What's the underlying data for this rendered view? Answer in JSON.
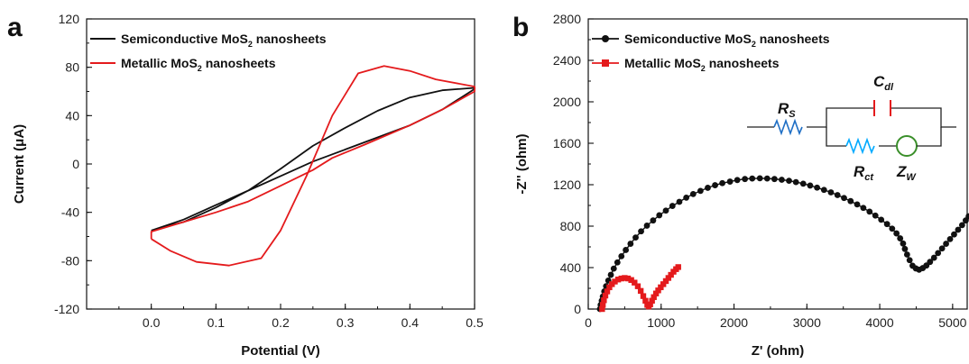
{
  "panels": [
    {
      "label": "a"
    },
    {
      "label": "b"
    }
  ],
  "chart_data": [
    {
      "type": "line",
      "xlabel": "Potential (V)",
      "ylabel": "Current (μA)",
      "xlim": [
        -0.1,
        0.5
      ],
      "ylim": [
        -120,
        120
      ],
      "xticks": [
        "0.0",
        "0.1",
        "0.2",
        "0.3",
        "0.4",
        "0.5"
      ],
      "yticks": [
        "-120",
        "-80",
        "-40",
        "0",
        "40",
        "80",
        "120"
      ],
      "grid": false,
      "legend_position": "top-left",
      "series": [
        {
          "name": "Semiconductive MoS2 nanosheets",
          "legend_main": "Semiconductive MoS",
          "legend_sub": "2",
          "legend_rest": " nanosheets",
          "color": "#111111",
          "x": [
            0.0,
            0.05,
            0.1,
            0.15,
            0.2,
            0.25,
            0.3,
            0.35,
            0.4,
            0.45,
            0.5,
            0.5,
            0.45,
            0.4,
            0.35,
            0.3,
            0.25,
            0.2,
            0.15,
            0.1,
            0.05,
            0.0,
            0.0
          ],
          "y": [
            -55,
            -48,
            -36,
            -22,
            -4,
            15,
            30,
            44,
            55,
            61,
            63,
            62,
            45,
            32,
            22,
            12,
            2,
            -10,
            -22,
            -34,
            -46,
            -55,
            -55
          ]
        },
        {
          "name": "Metallic MoS2 nanosheets",
          "legend_main": "Metallic MoS",
          "legend_sub": "2",
          "legend_rest": " nanosheets",
          "color": "#e41a1c",
          "x": [
            0.0,
            0.03,
            0.07,
            0.12,
            0.17,
            0.2,
            0.24,
            0.28,
            0.32,
            0.36,
            0.4,
            0.44,
            0.5,
            0.5,
            0.45,
            0.4,
            0.33,
            0.28,
            0.25,
            0.2,
            0.15,
            0.1,
            0.05,
            0.0,
            0.0
          ],
          "y": [
            -62,
            -72,
            -81,
            -84,
            -78,
            -55,
            -10,
            40,
            75,
            81,
            77,
            70,
            64,
            60,
            45,
            32,
            16,
            5,
            -5,
            -18,
            -31,
            -40,
            -48,
            -56,
            -62
          ]
        }
      ]
    },
    {
      "type": "scatter",
      "xlabel": "Z' (ohm)",
      "ylabel": "-Z'' (ohm)",
      "xlim": [
        0,
        5200
      ],
      "ylim": [
        0,
        2800
      ],
      "xticks": [
        "0",
        "1000",
        "2000",
        "3000",
        "4000",
        "5000"
      ],
      "yticks": [
        "0",
        "400",
        "800",
        "1200",
        "1600",
        "2000",
        "2400",
        "2800"
      ],
      "grid": false,
      "legend_position": "top-left",
      "series": [
        {
          "name": "Semiconductive MoS2 nanosheets",
          "legend_main": "Semiconductive MoS",
          "legend_sub": "2",
          "legend_rest": " nanosheets",
          "color": "#111111",
          "marker": "circle",
          "x": [
            160,
            170,
            185,
            200,
            220,
            245,
            275,
            310,
            350,
            400,
            455,
            515,
            580,
            650,
            725,
            805,
            890,
            975,
            1065,
            1155,
            1250,
            1345,
            1440,
            1540,
            1640,
            1740,
            1840,
            1945,
            2045,
            2150,
            2250,
            2355,
            2455,
            2555,
            2655,
            2755,
            2850,
            2950,
            3045,
            3140,
            3235,
            3330,
            3420,
            3510,
            3600,
            3690,
            3775,
            3860,
            3940,
            4020,
            4100,
            4170,
            4230,
            4280,
            4320,
            4345,
            4375,
            4410,
            4450,
            4495,
            4540,
            4590,
            4640,
            4690,
            4745,
            4800,
            4855,
            4910,
            4965,
            5020,
            5075,
            5130,
            5180,
            5220
          ],
          "y": [
            0,
            40,
            80,
            120,
            170,
            220,
            275,
            330,
            390,
            450,
            510,
            570,
            630,
            690,
            750,
            805,
            855,
            905,
            950,
            995,
            1035,
            1075,
            1110,
            1140,
            1170,
            1195,
            1215,
            1230,
            1245,
            1255,
            1260,
            1262,
            1260,
            1255,
            1248,
            1238,
            1225,
            1210,
            1192,
            1172,
            1150,
            1126,
            1100,
            1072,
            1042,
            1010,
            976,
            940,
            902,
            862,
            820,
            776,
            730,
            682,
            632,
            580,
            526,
            472,
            418,
            392,
            380,
            395,
            420,
            455,
            495,
            540,
            585,
            630,
            675,
            720,
            765,
            810,
            855,
            895
          ]
        },
        {
          "name": "Metallic MoS2 nanosheets",
          "legend_main": "Metallic MoS",
          "legend_sub": "2",
          "legend_rest": " nanosheets",
          "color": "#e41a1c",
          "marker": "square",
          "x": [
            190,
            200,
            215,
            235,
            260,
            290,
            325,
            365,
            410,
            455,
            500,
            545,
            590,
            635,
            680,
            720,
            755,
            785,
            810,
            830,
            850,
            875,
            900,
            930,
            960,
            995,
            1030,
            1065,
            1100,
            1135,
            1170,
            1205,
            1235
          ],
          "y": [
            0,
            40,
            85,
            130,
            170,
            210,
            240,
            265,
            285,
            295,
            300,
            295,
            280,
            255,
            220,
            175,
            125,
            80,
            40,
            25,
            45,
            80,
            115,
            150,
            180,
            210,
            240,
            270,
            300,
            330,
            360,
            385,
            405
          ]
        }
      ]
    }
  ],
  "inset_circuit": {
    "rs_main": "R",
    "rs_sub": "S",
    "cdl_main": "C",
    "cdl_sub": "dl",
    "rct_main": "R",
    "rct_sub": "ct",
    "zw_main": "Z",
    "zw_sub": "W",
    "resistor_color": "#1f6fc5",
    "rct_color": "#00aaff",
    "capacitor_color": "#e41a1c",
    "warburg_color": "#3a8f2a"
  }
}
